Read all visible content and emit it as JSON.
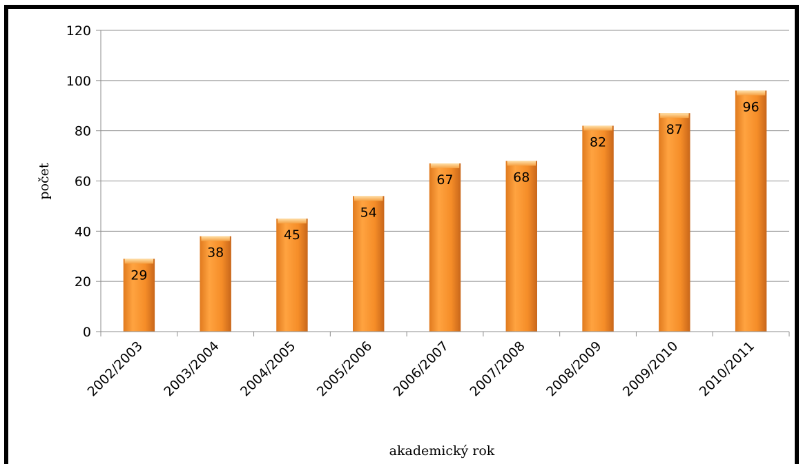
{
  "chart_data": {
    "type": "bar",
    "categories": [
      "2002/2003",
      "2003/2004",
      "2004/2005",
      "2005/2006",
      "2006/2007",
      "2007/2008",
      "2008/2009",
      "2009/2010",
      "2010/2011"
    ],
    "values": [
      29,
      38,
      45,
      54,
      67,
      68,
      82,
      87,
      96
    ],
    "title": "",
    "xlabel": "akademický rok",
    "ylabel": "počet",
    "ylim": [
      0,
      120
    ],
    "yticks": [
      0,
      20,
      40,
      60,
      80,
      100,
      120
    ],
    "grid": true,
    "legend": "none",
    "colors": {
      "bar_light": "#ffc070",
      "bar_mid": "#f5922c",
      "bar_dark": "#c8661a",
      "grid": "#8c8c8c"
    }
  }
}
